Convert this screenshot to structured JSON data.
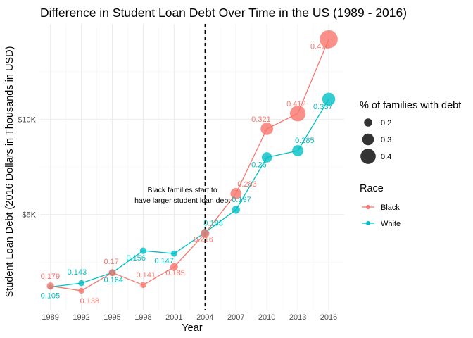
{
  "chart_data": {
    "type": "line",
    "title": "Difference in Student Loan Debt Over Time in the US (1989 - 2016)",
    "xlabel": "Year",
    "ylabel": "Student Loan Debt (2016 Dollars in Thousands in USD)",
    "x": [
      1989,
      1992,
      1995,
      1998,
      2001,
      2004,
      2007,
      2010,
      2013,
      2016
    ],
    "xlim": [
      1988,
      2017.5
    ],
    "ylim": [
      0,
      15
    ],
    "yticks": [
      {
        "value": 5,
        "label": "$5K"
      },
      {
        "value": 10,
        "label": "$10K"
      }
    ],
    "xticks": [
      "1989",
      "1992",
      "1995",
      "1998",
      "2001",
      "2004",
      "2007",
      "2010",
      "2013",
      "2016"
    ],
    "grid": true,
    "vline": {
      "x": 2004,
      "style": "dashed"
    },
    "annotation": {
      "x": 2001.8,
      "y": 5.8,
      "lines": [
        "Black families start to",
        "have larger student loan debt"
      ]
    },
    "series": [
      {
        "name": "Black",
        "color": "#F8766D",
        "values": [
          1.25,
          1.0,
          1.95,
          1.3,
          2.25,
          4.0,
          6.1,
          9.5,
          10.3,
          14.2
        ],
        "pct": [
          0.179,
          0.138,
          0.17,
          0.141,
          0.185,
          0.216,
          0.283,
          0.321,
          0.412,
          0.478
        ],
        "labels": [
          "0.179",
          "0.138",
          "0.17",
          "0.141",
          "0.185",
          "0.216",
          "0.283",
          "0.321",
          "0.412",
          "0.478"
        ]
      },
      {
        "name": "White",
        "color": "#00BFC4",
        "values": [
          1.2,
          1.4,
          1.95,
          3.1,
          2.95,
          4.05,
          5.25,
          8.0,
          8.35,
          11.05
        ],
        "pct": [
          0.105,
          0.143,
          0.164,
          0.156,
          0.147,
          0.183,
          0.197,
          0.26,
          0.285,
          0.337
        ],
        "labels": [
          "0.105",
          "0.143",
          "0.164",
          "0.156",
          "0.147",
          "0.183",
          "0.197",
          "0.26",
          "0.285",
          "0.337"
        ]
      }
    ],
    "legend": {
      "placement": "right",
      "size_title": "% of families with debt",
      "size_entries": [
        {
          "value": 0.2,
          "label": "0.2"
        },
        {
          "value": 0.3,
          "label": "0.3"
        },
        {
          "value": 0.4,
          "label": "0.4"
        }
      ],
      "color_title": "Race",
      "color_entries": [
        "Black",
        "White"
      ]
    }
  }
}
